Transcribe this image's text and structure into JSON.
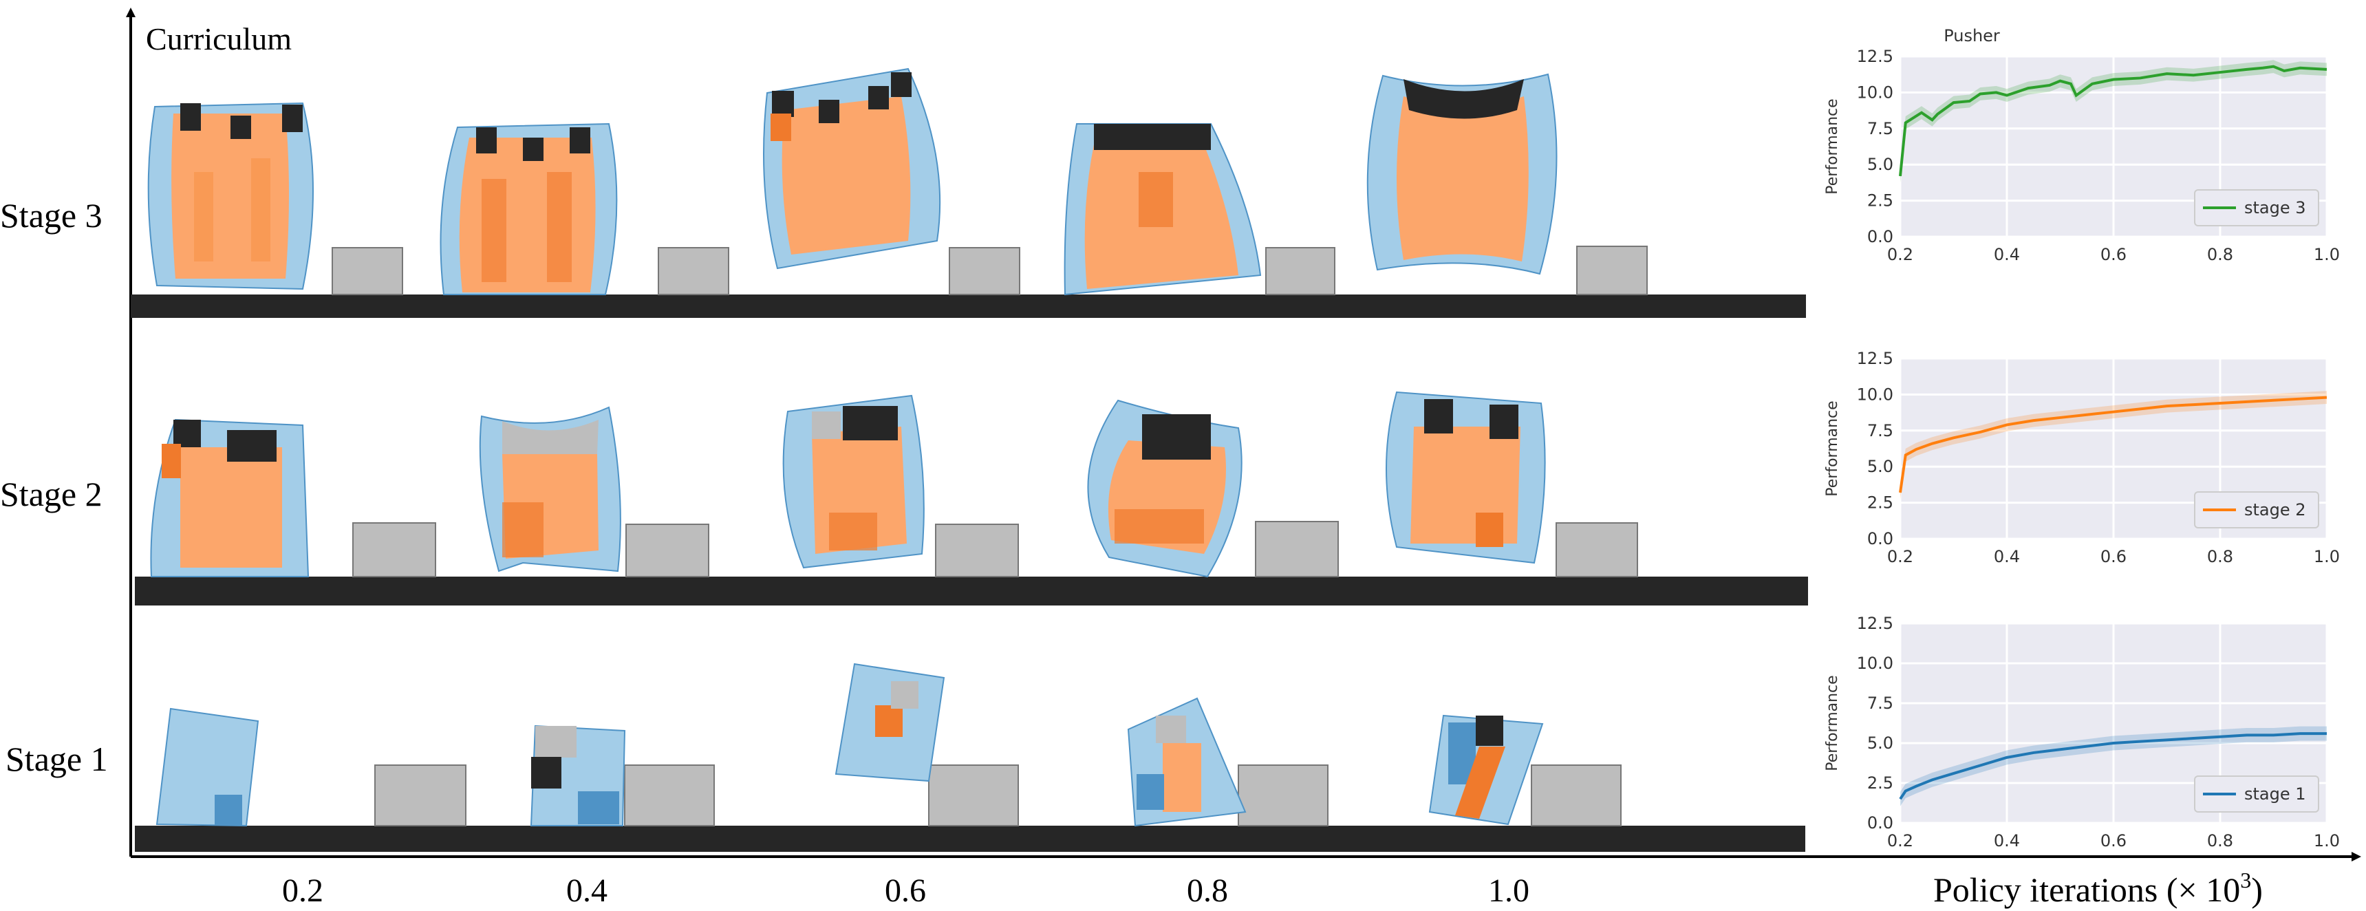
{
  "figure": {
    "y_axis_label": "Curriculum",
    "x_axis_label": "Policy iterations (× 10",
    "x_axis_exponent": "3",
    "x_axis_close": ")",
    "x_ticks": [
      "0.2",
      "0.4",
      "0.6",
      "0.8",
      "1.0"
    ],
    "stages": [
      "Stage 3",
      "Stage 2",
      "Stage 1"
    ],
    "colors": {
      "soft_body_orange": "#fca66b",
      "actuator_dark_orange": "#f07a2c",
      "passive_blue": "#a3cde8",
      "dark_blue": "#4f93c6",
      "rigid_black": "#262626",
      "box_gray": "#bdbdbd",
      "ground": "#262626"
    }
  },
  "chart_data": [
    {
      "type": "line",
      "title": "Pusher",
      "ylabel": "Performance",
      "xlim": [
        0.2,
        1.0
      ],
      "ylim": [
        0.0,
        12.5
      ],
      "xticks": [
        "0.2",
        "0.4",
        "0.6",
        "0.8",
        "1.0"
      ],
      "yticks": [
        "0.0",
        "2.5",
        "5.0",
        "7.5",
        "10.0",
        "12.5"
      ],
      "grid": true,
      "legend_position": "lower-right",
      "series": [
        {
          "name": "stage 3",
          "color": "#2ca02c",
          "x": [
            0.2,
            0.21,
            0.24,
            0.26,
            0.27,
            0.3,
            0.33,
            0.35,
            0.38,
            0.4,
            0.44,
            0.48,
            0.5,
            0.52,
            0.53,
            0.56,
            0.6,
            0.65,
            0.7,
            0.75,
            0.8,
            0.85,
            0.88,
            0.9,
            0.92,
            0.95,
            1.0
          ],
          "y": [
            4.2,
            7.9,
            8.6,
            8.1,
            8.5,
            9.3,
            9.4,
            9.9,
            10.0,
            9.8,
            10.3,
            10.5,
            10.8,
            10.6,
            9.8,
            10.6,
            10.9,
            11.0,
            11.3,
            11.2,
            11.4,
            11.6,
            11.7,
            11.8,
            11.5,
            11.7,
            11.6
          ]
        },
        {
          "name": "stage 2",
          "color": "#ff7f0e",
          "x": [
            0.2,
            0.21,
            0.23,
            0.26,
            0.3,
            0.35,
            0.4,
            0.45,
            0.5,
            0.55,
            0.6,
            0.65,
            0.7,
            0.75,
            0.8,
            0.85,
            0.9,
            0.95,
            1.0
          ],
          "y": [
            3.2,
            5.8,
            6.2,
            6.6,
            7.0,
            7.4,
            7.9,
            8.2,
            8.4,
            8.6,
            8.8,
            9.0,
            9.2,
            9.3,
            9.4,
            9.5,
            9.6,
            9.7,
            9.8
          ]
        },
        {
          "name": "stage 1",
          "color": "#1f77b4",
          "x": [
            0.2,
            0.21,
            0.23,
            0.26,
            0.3,
            0.35,
            0.4,
            0.45,
            0.5,
            0.55,
            0.6,
            0.65,
            0.7,
            0.75,
            0.8,
            0.85,
            0.9,
            0.95,
            1.0
          ],
          "y": [
            1.5,
            2.0,
            2.3,
            2.7,
            3.1,
            3.6,
            4.1,
            4.4,
            4.6,
            4.8,
            5.0,
            5.1,
            5.2,
            5.3,
            5.4,
            5.5,
            5.5,
            5.6,
            5.6
          ]
        }
      ]
    }
  ]
}
